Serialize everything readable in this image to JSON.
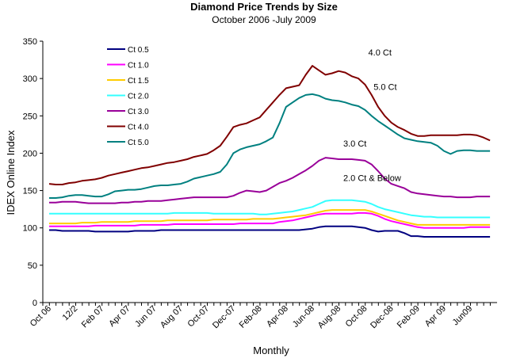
{
  "chart_data": {
    "type": "line",
    "title": "Diamond Price Trends by Size",
    "subtitle": "October 2006 -July 2009",
    "xlabel": "Monthly",
    "ylabel": "IDEX Online Index",
    "ylim": [
      0,
      350
    ],
    "yticks": [
      0,
      50,
      100,
      150,
      200,
      250,
      300,
      350
    ],
    "grid": false,
    "legend_position": "top-left",
    "x_tick_labels": [
      {
        "i": 0,
        "label": "Oct 06"
      },
      {
        "i": 4,
        "label": "12/2"
      },
      {
        "i": 8,
        "label": "Feb 07"
      },
      {
        "i": 12,
        "label": "Apr 07"
      },
      {
        "i": 16,
        "label": "Jun 07"
      },
      {
        "i": 20,
        "label": "Aug 07"
      },
      {
        "i": 24,
        "label": "Oct-07"
      },
      {
        "i": 28,
        "label": "Dec-07"
      },
      {
        "i": 32,
        "label": "Feb-08"
      },
      {
        "i": 36,
        "label": "Apr-08"
      },
      {
        "i": 40,
        "label": "Jun-08"
      },
      {
        "i": 44,
        "label": "Aug-08"
      },
      {
        "i": 48,
        "label": "Oct-08"
      },
      {
        "i": 52,
        "label": "Dec-08"
      },
      {
        "i": 56,
        "label": "Feb-09"
      },
      {
        "i": 60,
        "label": "Apr 09"
      },
      {
        "i": 64,
        "label": "Jun09"
      }
    ],
    "series": [
      {
        "name": "Ct 0.5",
        "color": "#000080",
        "values": [
          97,
          97,
          96,
          96,
          96,
          96,
          96,
          95,
          95,
          95,
          95,
          95,
          95,
          96,
          96,
          96,
          96,
          97,
          97,
          97,
          97,
          97,
          97,
          97,
          97,
          97,
          97,
          97,
          97,
          97,
          97,
          97,
          97,
          97,
          97,
          97,
          97,
          97,
          97,
          98,
          99,
          101,
          102,
          102,
          102,
          102,
          102,
          101,
          100,
          97,
          95,
          96,
          96,
          96,
          93,
          89,
          89,
          88,
          88,
          88,
          88,
          88,
          88,
          88,
          88,
          88,
          88,
          88
        ]
      },
      {
        "name": "Ct 1.0",
        "color": "#FF00FF",
        "values": [
          102,
          102,
          102,
          102,
          102,
          102,
          102,
          103,
          103,
          103,
          103,
          103,
          103,
          103,
          104,
          104,
          104,
          104,
          104,
          105,
          105,
          105,
          105,
          105,
          105,
          105,
          105,
          105,
          105,
          106,
          106,
          106,
          106,
          106,
          106,
          108,
          109,
          110,
          112,
          114,
          116,
          118,
          119,
          119,
          119,
          119,
          119,
          120,
          120,
          119,
          116,
          112,
          109,
          107,
          105,
          103,
          101,
          100,
          100,
          100,
          100,
          100,
          100,
          100,
          101,
          101,
          101,
          101
        ]
      },
      {
        "name": "Ct 1.5",
        "color": "#FFCC00",
        "values": [
          106,
          106,
          106,
          106,
          106,
          107,
          107,
          107,
          108,
          108,
          108,
          108,
          108,
          109,
          109,
          109,
          109,
          109,
          110,
          110,
          110,
          110,
          110,
          110,
          110,
          111,
          111,
          111,
          111,
          111,
          111,
          112,
          112,
          112,
          112,
          113,
          114,
          115,
          116,
          117,
          119,
          121,
          123,
          124,
          124,
          124,
          124,
          124,
          124,
          122,
          119,
          116,
          113,
          110,
          108,
          106,
          104,
          104,
          104,
          104,
          104,
          104,
          104,
          104,
          104,
          104,
          104,
          104
        ]
      },
      {
        "name": "Ct 2.0",
        "color": "#33FFFF",
        "values": [
          119,
          119,
          119,
          119,
          119,
          119,
          119,
          119,
          119,
          119,
          119,
          119,
          119,
          119,
          119,
          119,
          119,
          119,
          119,
          120,
          120,
          120,
          120,
          120,
          120,
          119,
          119,
          119,
          119,
          119,
          119,
          119,
          118,
          118,
          119,
          120,
          121,
          122,
          124,
          126,
          128,
          132,
          136,
          137,
          137,
          137,
          137,
          136,
          135,
          132,
          128,
          125,
          123,
          121,
          119,
          117,
          116,
          115,
          115,
          114,
          114,
          114,
          114,
          114,
          114,
          114,
          114,
          114
        ]
      },
      {
        "name": "Ct 3.0",
        "color": "#990099",
        "values": [
          134,
          134,
          135,
          135,
          135,
          134,
          133,
          133,
          133,
          133,
          133,
          134,
          134,
          135,
          135,
          136,
          136,
          136,
          137,
          138,
          139,
          140,
          141,
          141,
          141,
          141,
          141,
          141,
          143,
          147,
          150,
          149,
          148,
          150,
          155,
          160,
          163,
          167,
          172,
          177,
          183,
          190,
          194,
          193,
          192,
          192,
          192,
          191,
          190,
          185,
          176,
          166,
          159,
          156,
          153,
          148,
          146,
          145,
          144,
          143,
          142,
          142,
          141,
          141,
          141,
          142,
          142,
          142
        ]
      },
      {
        "name": "Ct 4.0",
        "color": "#800000",
        "values": [
          159,
          158,
          158,
          160,
          161,
          163,
          164,
          165,
          167,
          170,
          172,
          174,
          176,
          178,
          180,
          181,
          183,
          185,
          187,
          188,
          190,
          192,
          195,
          197,
          199,
          204,
          210,
          222,
          235,
          238,
          240,
          244,
          248,
          258,
          268,
          278,
          287,
          289,
          291,
          305,
          317,
          311,
          305,
          307,
          310,
          308,
          303,
          300,
          292,
          278,
          262,
          250,
          241,
          235,
          231,
          226,
          223,
          223,
          224,
          224,
          224,
          224,
          224,
          225,
          225,
          224,
          221,
          217
        ]
      },
      {
        "name": "Ct 5.0",
        "color": "#008080",
        "values": [
          140,
          140,
          141,
          143,
          144,
          144,
          143,
          142,
          142,
          145,
          149,
          150,
          151,
          151,
          152,
          154,
          156,
          157,
          157,
          158,
          159,
          162,
          166,
          168,
          170,
          172,
          175,
          185,
          200,
          205,
          208,
          210,
          212,
          216,
          221,
          240,
          262,
          268,
          274,
          278,
          279,
          277,
          273,
          271,
          270,
          268,
          265,
          263,
          258,
          250,
          243,
          237,
          231,
          225,
          220,
          218,
          216,
          215,
          214,
          210,
          203,
          199,
          203,
          204,
          204,
          203,
          203,
          203
        ]
      }
    ],
    "annotations": [
      {
        "text": "4.0 Ct",
        "x": 48.5,
        "y": 331
      },
      {
        "text": "5.0 Ct",
        "x": 49.3,
        "y": 285
      },
      {
        "text": "3.0 Ct",
        "x": 44.7,
        "y": 209
      },
      {
        "text": "2.0 Ct & Below",
        "x": 44.7,
        "y": 163
      }
    ]
  }
}
